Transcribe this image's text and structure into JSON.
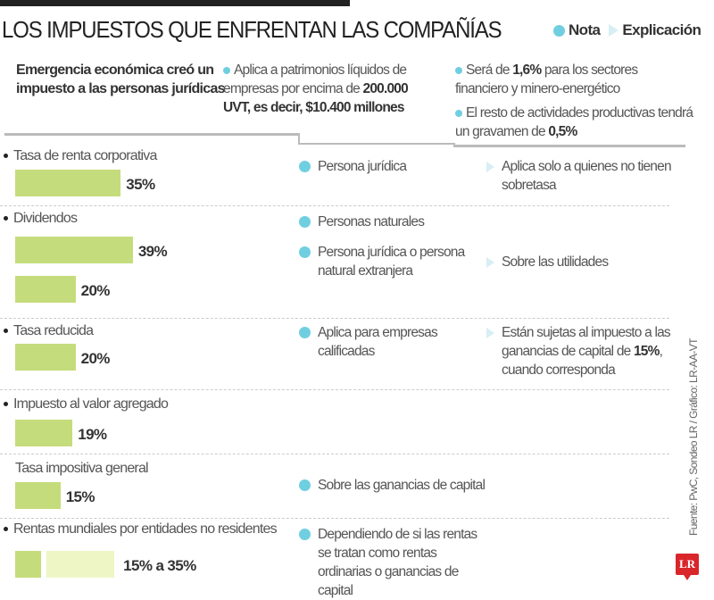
{
  "title": "LOS IMPUESTOS QUE ENFRENTAN LAS COMPAÑÍAS",
  "legend": {
    "nota": "Nota",
    "explicacion": "Explicación",
    "nota_icon": "circle-dot-icon",
    "explicacion_icon": "triangle-arrow-icon"
  },
  "intro": {
    "heading": "Emergencia económica creó un impuesto a las personas jurídicas",
    "point1": [
      "Aplica a patrimonios líquidos de empresas por encima de ",
      "200.000 UVT, es decir, $10.400 millones"
    ],
    "point2": [
      "Será de ",
      "1,6%",
      " para los sectores financiero y minero-energético"
    ],
    "point3": [
      "El resto de actividades productivas tendrá un gravamen de ",
      "0,5%"
    ]
  },
  "colors": {
    "bar": "#c5dc7c",
    "bar_light": "#eef6c6",
    "note": "#6fcfe0",
    "explanation": "#d8eef5",
    "logo": "#d9262b"
  },
  "chart_data": {
    "type": "bar",
    "orientation": "horizontal",
    "categories": [
      "Tasa de renta corporativa",
      "Dividendos",
      "Tasa reducida",
      "Impuesto al valor agregado",
      "Tasa impositiva general",
      "Rentas mundiales por entidades no residentes"
    ],
    "groups": [
      {
        "label": "Tasa de renta corporativa",
        "bars": [
          {
            "value": 35,
            "label": "35%"
          }
        ],
        "notes": [
          "Persona jurídica"
        ],
        "explanation": "Aplica solo a quienes no tienen sobretasa"
      },
      {
        "label": "Dividendos",
        "bars": [
          {
            "value": 39,
            "label": "39%"
          },
          {
            "value": 20,
            "label": "20%"
          }
        ],
        "notes": [
          "Personas naturales",
          "Persona jurídica o persona natural extranjera"
        ],
        "explanation": "Sobre las utilidades"
      },
      {
        "label": "Tasa reducida",
        "bars": [
          {
            "value": 20,
            "label": "20%"
          }
        ],
        "notes": [
          "Aplica para empresas calificadas"
        ],
        "explanation": [
          "Están sujetas al impuesto a las ganancias de capital de ",
          "15%",
          ", cuando corresponda"
        ]
      },
      {
        "label": "Impuesto al valor agregado",
        "bars": [
          {
            "value": 19,
            "label": "19%"
          }
        ],
        "notes": [],
        "explanation": ""
      },
      {
        "label": "Tasa impositiva general",
        "bars": [
          {
            "value": 15,
            "label": "15%"
          }
        ],
        "notes": [
          "Sobre las ganancias de capital"
        ],
        "explanation": ""
      },
      {
        "label": "Rentas mundiales por entidades no residentes",
        "bars": [
          {
            "value_min": 15,
            "value_max": 35,
            "label": "15% a 35%"
          }
        ],
        "notes": [
          "Dependiendo de si las rentas se tratan como rentas ordinarias o ganancias de capital"
        ],
        "explanation": ""
      }
    ]
  },
  "source": "Fuente: PwC, Sondeo LR / Gráfico: LR-AA-VT",
  "logo": "LR"
}
